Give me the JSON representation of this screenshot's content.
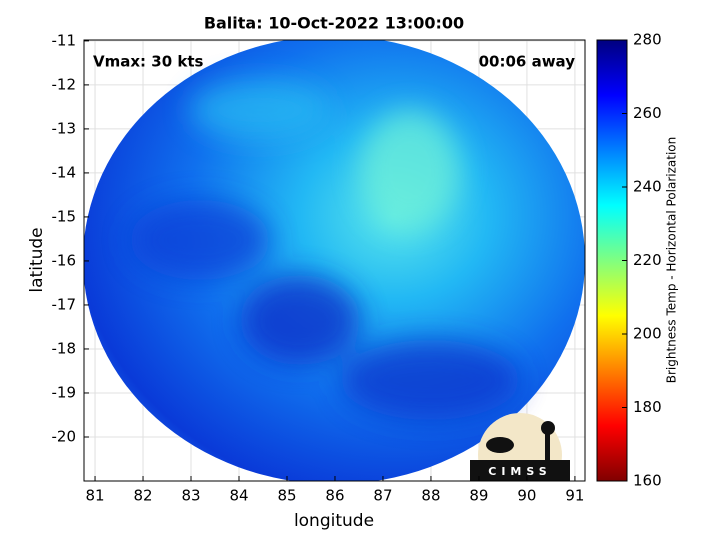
{
  "chart_data": {
    "type": "image",
    "title": "Balita: 10-Oct-2022 13:00:00",
    "annotations": [
      "Vmax: 30 kts",
      "00:06 away"
    ],
    "xlabel": "longitude",
    "ylabel": "latitude",
    "xlim": [
      80.77,
      91.21
    ],
    "ylim": [
      -21,
      -10.98
    ],
    "xticks": [
      81,
      82,
      83,
      84,
      85,
      86,
      87,
      88,
      89,
      90,
      91
    ],
    "yticks": [
      -20,
      -19,
      -18,
      -17,
      -16,
      -15,
      -14,
      -13,
      -12,
      -11
    ],
    "grid": true,
    "logo": "CIMSS",
    "colorbar": {
      "label": "Brightness Temp - Horizontal Polarization",
      "colormap": "jet",
      "lim": [
        160,
        280
      ],
      "ticks": [
        160,
        180,
        200,
        220,
        240,
        260,
        280
      ]
    }
  }
}
